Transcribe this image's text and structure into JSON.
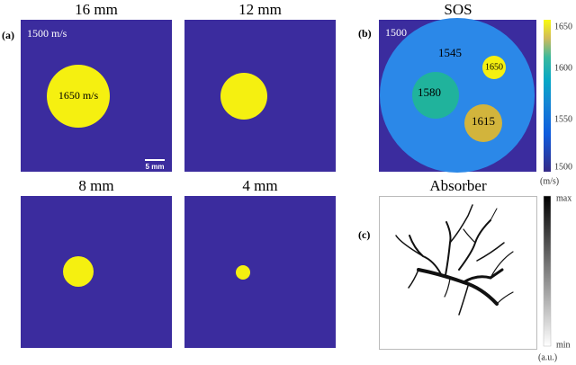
{
  "panel_a": {
    "label": "(a)",
    "phantoms": [
      {
        "title": "16 mm",
        "background_label": "1500 m/s",
        "inclusion_label": "1650 m/s",
        "scale_bar": "5 mm"
      },
      {
        "title": "12 mm"
      },
      {
        "title": "8 mm"
      },
      {
        "title": "4 mm"
      }
    ]
  },
  "panel_b": {
    "label": "(b)",
    "title": "SOS",
    "background_label": "1500",
    "region_labels": [
      "1545",
      "1650",
      "1580",
      "1615"
    ],
    "colorbar_ticks": [
      "1650",
      "1600",
      "1550",
      "1500"
    ],
    "colorbar_unit": "(m/s)"
  },
  "panel_c": {
    "label": "(c)",
    "title": "Absorber",
    "colorbar_max": "max",
    "colorbar_min": "min",
    "colorbar_unit": "(a.u.)"
  }
}
